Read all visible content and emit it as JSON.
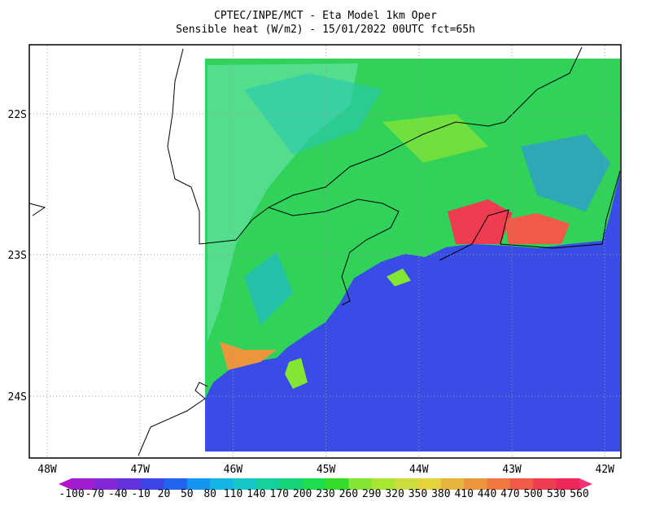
{
  "header": {
    "title": "CPTEC/INPE/MCT -  Eta Model 1km Oper",
    "subtitle": "Sensible heat (W/m2) - 15/01/2022 00UTC fct=65h"
  },
  "lat_labels": [
    "22S",
    "23S",
    "24S"
  ],
  "lon_labels": [
    "48W",
    "47W",
    "46W",
    "45W",
    "44W",
    "43W",
    "42W"
  ],
  "colorbar": {
    "levels": [
      -100,
      -70,
      -40,
      -10,
      20,
      50,
      80,
      110,
      140,
      170,
      200,
      230,
      260,
      290,
      320,
      350,
      380,
      410,
      440,
      470,
      500,
      530,
      560
    ],
    "colors": [
      "#a01ed2",
      "#8228d7",
      "#6432dc",
      "#3c46e6",
      "#2064f0",
      "#1496f0",
      "#14b4e6",
      "#14c8c8",
      "#14d2a0",
      "#14d278",
      "#1edc50",
      "#32dc28",
      "#82e632",
      "#a8e632",
      "#ccdc3c",
      "#e6d23c",
      "#e6b43c",
      "#eb963c",
      "#f07840",
      "#f05a46",
      "#f03c50",
      "#f0285a"
    ],
    "under_color": "#b414c8",
    "over_color": "#f0327a"
  }
}
